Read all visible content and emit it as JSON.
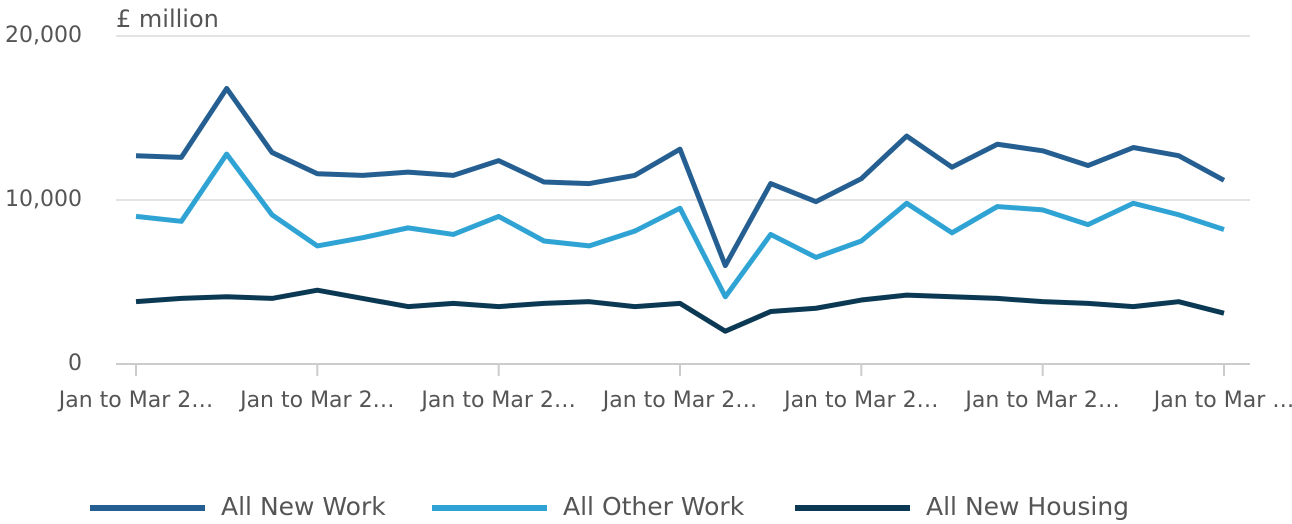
{
  "chart_data": {
    "type": "line",
    "y_label": "£ million",
    "categories": [
      "Jan to Mar 2…",
      null,
      null,
      null,
      "Jan to Mar 2…",
      null,
      null,
      null,
      "Jan to Mar 2…",
      null,
      null,
      null,
      "Jan to Mar 2…",
      null,
      null,
      null,
      "Jan to Mar 2…",
      null,
      null,
      null,
      "Jan to Mar 2…",
      null,
      null,
      null,
      "Jan to Mar …"
    ],
    "series": [
      {
        "name": "All New Work",
        "color": "#255f91",
        "values": [
          12700,
          12600,
          16800,
          12900,
          11600,
          11500,
          11700,
          11500,
          12400,
          11100,
          11000,
          11500,
          13100,
          6000,
          11000,
          9900,
          11300,
          13900,
          12000,
          13400,
          13000,
          12100,
          13200,
          12700,
          11200
        ]
      },
      {
        "name": "All Other Work",
        "color": "#2ea3d4",
        "values": [
          9000,
          8700,
          12800,
          9100,
          7200,
          7700,
          8300,
          7900,
          9000,
          7500,
          7200,
          8100,
          9500,
          4100,
          7900,
          6500,
          7500,
          9800,
          8000,
          9600,
          9400,
          8500,
          9800,
          9100,
          8200
        ]
      },
      {
        "name": "All New Housing",
        "color": "#0b3954",
        "values": [
          3800,
          4000,
          4100,
          4000,
          4500,
          4000,
          3500,
          3700,
          3500,
          3700,
          3800,
          3500,
          3700,
          2000,
          3200,
          3400,
          3900,
          4200,
          4100,
          4000,
          3800,
          3700,
          3500,
          3800,
          3100
        ]
      }
    ],
    "ylim": [
      0,
      20000
    ],
    "yticks": [
      0,
      {
        "value": 10000,
        "label": "10,000"
      },
      {
        "value": 20000,
        "label": "20,000"
      }
    ],
    "grid": true,
    "legend": "bottom"
  }
}
